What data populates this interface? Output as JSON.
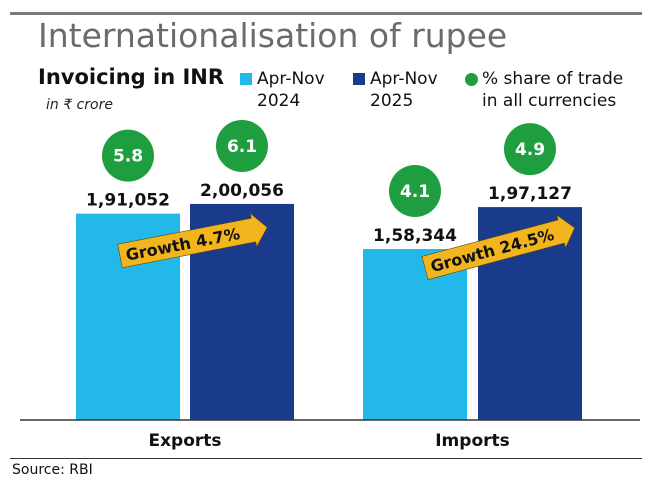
{
  "title": "Internationalisation of rupee",
  "subtitle": "Invoicing in INR",
  "unit": "in ₹ crore",
  "source": "Source: RBI",
  "colors": {
    "light": "#22b8ea",
    "dark": "#1a3a8c",
    "green": "#1f9e3f",
    "arrow": "#f2b51d"
  },
  "legend": [
    {
      "label": "Apr-Nov\n2024",
      "color": "#22b8ea",
      "shape": "square"
    },
    {
      "label": "Apr-Nov\n2025",
      "color": "#1a3a8c",
      "shape": "square"
    },
    {
      "label": "% share of trade\nin all currencies",
      "color": "#1f9e3f",
      "shape": "dot"
    }
  ],
  "chart_data": {
    "type": "bar",
    "categories": [
      "Exports",
      "Imports"
    ],
    "series": [
      {
        "name": "Apr-Nov 2024",
        "values": [
          191052,
          158344
        ],
        "labels": [
          "1,91,052",
          "1,58,344"
        ],
        "share": [
          "5.8",
          "4.1"
        ]
      },
      {
        "name": "Apr-Nov 2025",
        "values": [
          200056,
          197127
        ],
        "labels": [
          "2,00,056",
          "1,97,127"
        ],
        "share": [
          "6.1",
          "4.9"
        ]
      }
    ],
    "growth": [
      "Growth 4.7%",
      "Growth 24.5%"
    ],
    "ylim": [
      0,
      300000
    ],
    "grid": false,
    "legend_position": "top"
  }
}
